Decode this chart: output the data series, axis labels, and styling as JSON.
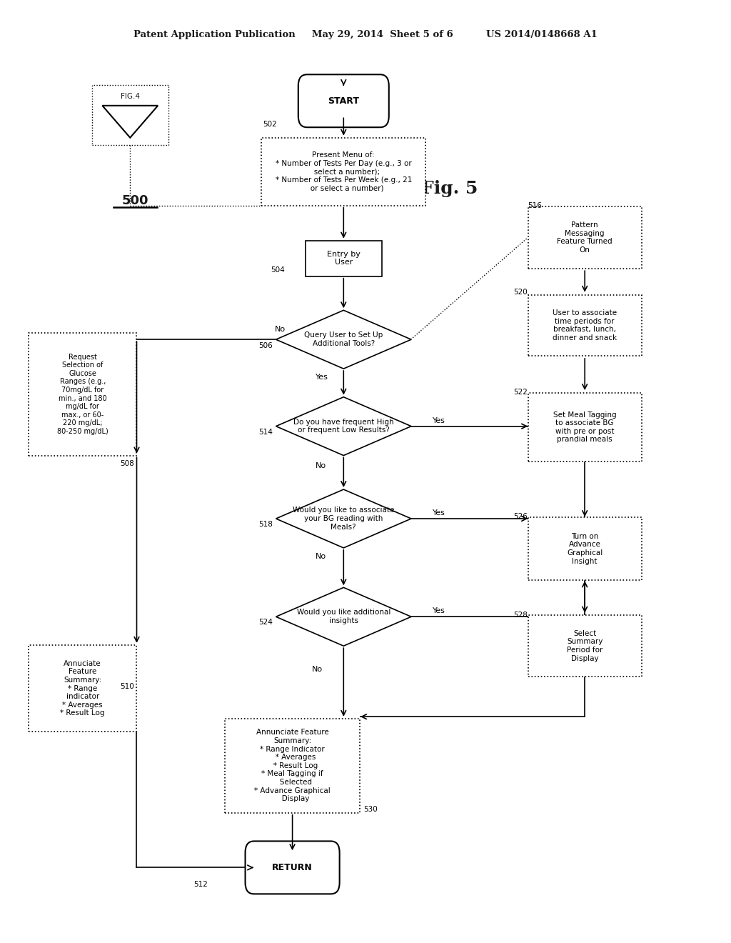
{
  "bg_color": "#ffffff",
  "header_text": "Patent Application Publication     May 29, 2014  Sheet 5 of 6          US 2014/0148668 A1",
  "fig_label": "Fig. 5",
  "diagram_label": "500",
  "fig4_label": "FIG.4"
}
